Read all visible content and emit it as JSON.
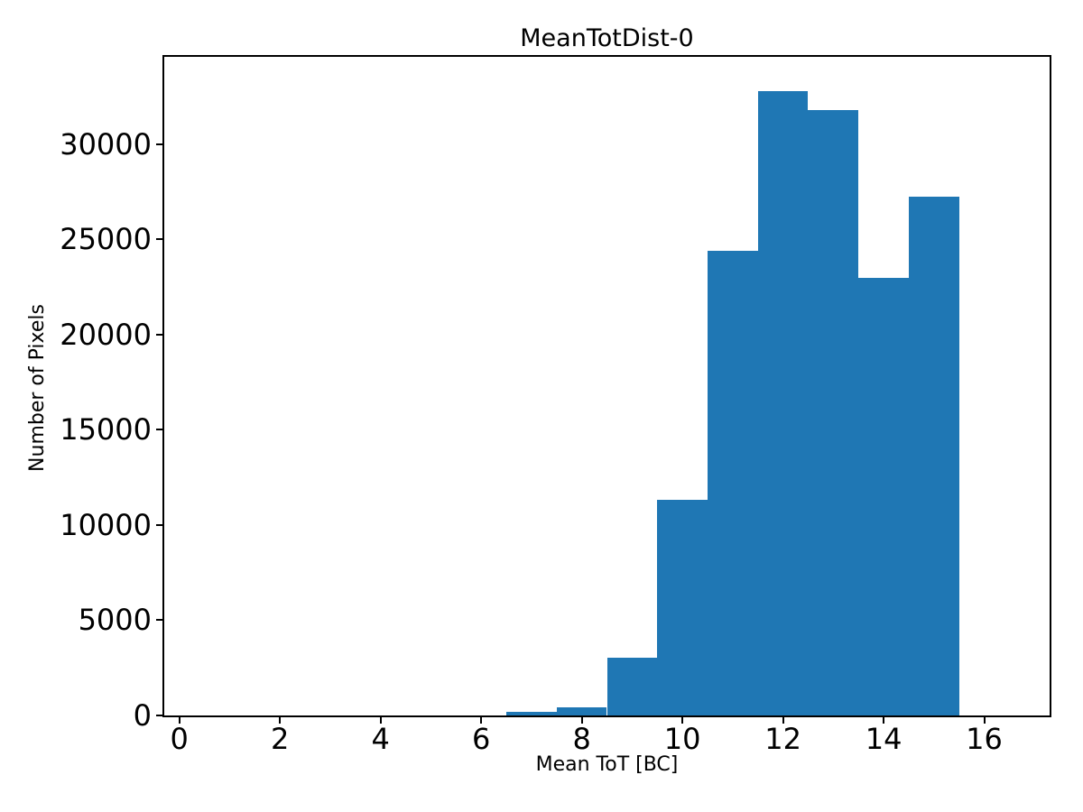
{
  "chart_data": {
    "type": "bar",
    "subtype": "histogram",
    "title": "MeanTotDist-0",
    "xlabel": "Mean ToT [BC]",
    "ylabel": "Number of Pixels",
    "bar_color": "#1f77b4",
    "axis_color": "#000000",
    "background_color": "#ffffff",
    "bin_edges": [
      0.5,
      1.5,
      2.5,
      3.5,
      4.5,
      5.5,
      6.5,
      7.5,
      8.5,
      9.5,
      10.5,
      11.5,
      12.5,
      13.5,
      14.5,
      15.5,
      16.5
    ],
    "bin_centers": [
      1,
      2,
      3,
      4,
      5,
      6,
      7,
      8,
      9,
      10,
      11,
      12,
      13,
      14,
      15,
      16
    ],
    "counts": [
      0,
      0,
      0,
      0,
      0,
      0,
      170,
      410,
      3030,
      11320,
      24390,
      32770,
      31780,
      22970,
      27230,
      0
    ],
    "xticks": [
      0,
      2,
      4,
      6,
      8,
      10,
      12,
      14,
      16
    ],
    "yticks": [
      0,
      5000,
      10000,
      15000,
      20000,
      25000,
      30000
    ],
    "xlim": [
      -0.3,
      17.3
    ],
    "ylim": [
      0,
      34570
    ],
    "grid": false,
    "legend": false
  }
}
